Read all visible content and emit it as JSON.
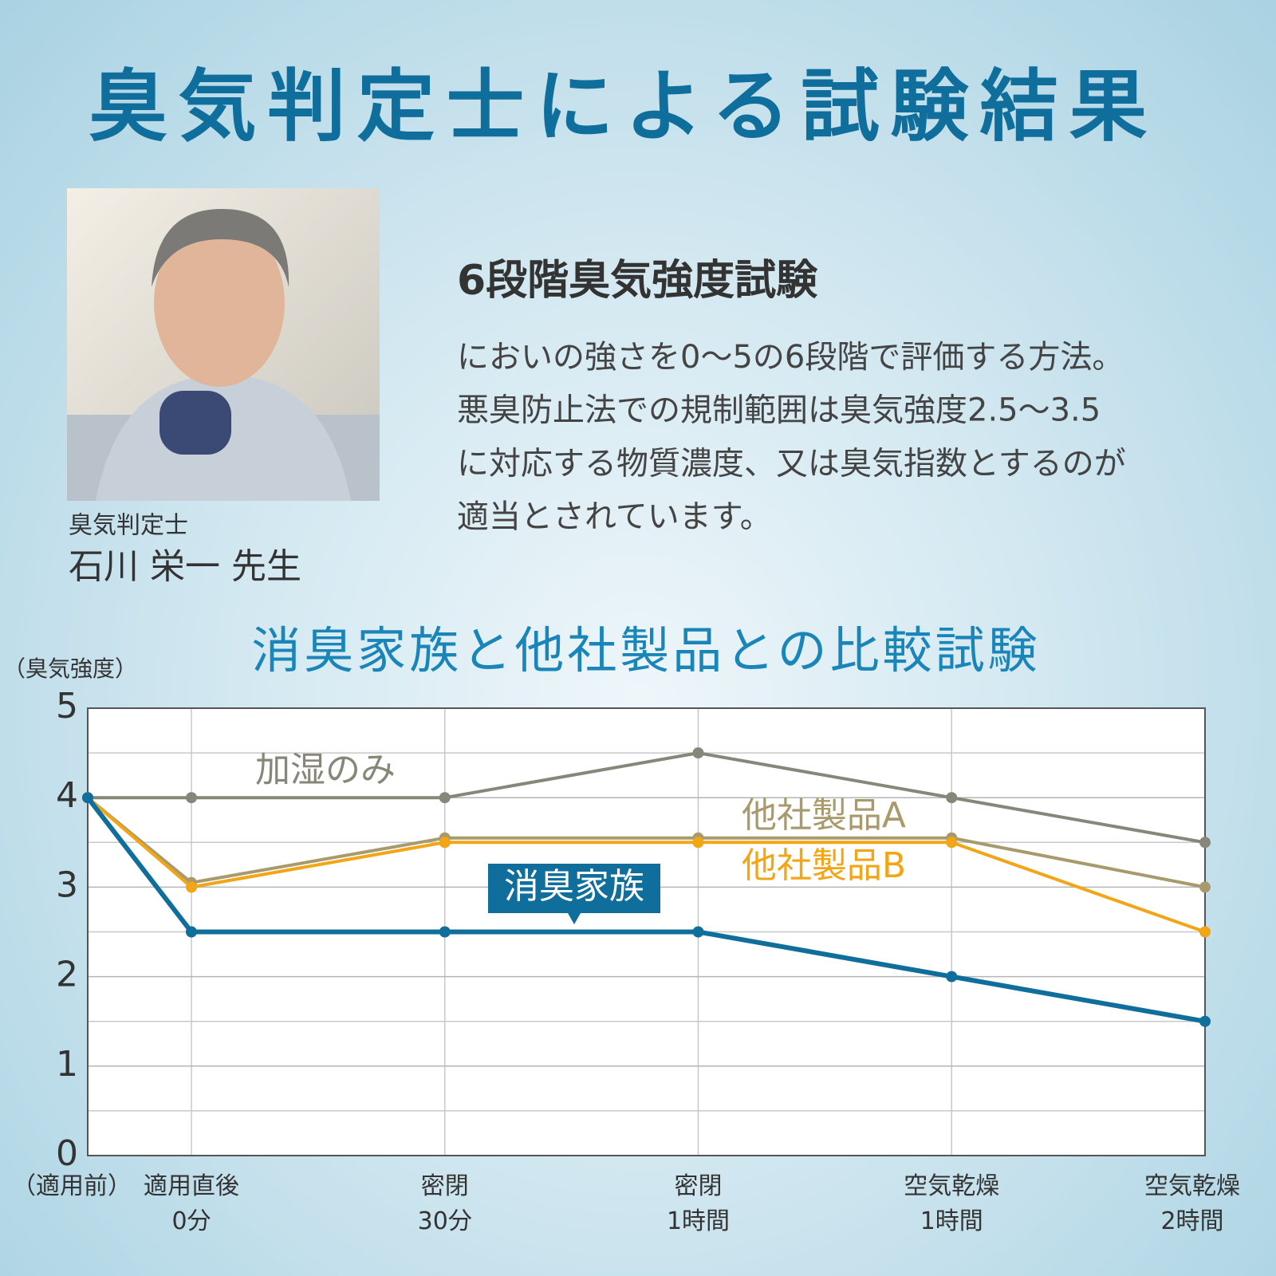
{
  "header": {
    "title": "臭気判定士による試験結果"
  },
  "profile": {
    "role": "臭気判定士",
    "name": "石川 栄一 先生"
  },
  "description": {
    "heading": "6段階臭気強度試験",
    "lines": [
      "においの強さを0〜5の6段階で評価する方法。",
      "悪臭防止法での規制範囲は臭気強度2.5〜3.5",
      "に対応する物質濃度、又は臭気指数とするのが",
      "適当とされています。"
    ]
  },
  "chart_data": {
    "type": "line",
    "title": "消臭家族と他社製品との比較試験",
    "y_label": "（臭気強度）",
    "categories": [
      "（適用前）",
      "適用直後\n0分",
      "密閉\n30分",
      "密閉\n1時間",
      "空気乾燥\n1時間",
      "空気乾燥\n2時間"
    ],
    "series": [
      {
        "name": "加湿のみ",
        "color": "#878779",
        "values": [
          4,
          4,
          4,
          4.5,
          4,
          3.5
        ]
      },
      {
        "name": "他社製品A",
        "color": "#a89a6c",
        "values": [
          4,
          3.05,
          3.55,
          3.55,
          3.55,
          3
        ]
      },
      {
        "name": "他社製品B",
        "color": "#f2a515",
        "values": [
          4,
          3,
          3.5,
          3.5,
          3.5,
          2.5
        ]
      },
      {
        "name": "消臭家族",
        "color": "#0f6e9b",
        "values": [
          4,
          2.5,
          2.5,
          2.5,
          2,
          1.5
        ]
      }
    ],
    "ylim": [
      0,
      5
    ],
    "yticks": [
      0,
      1,
      2,
      3,
      4,
      5
    ],
    "minor_yticks": [
      0.5,
      1.5,
      2.5,
      3.5,
      4.5
    ],
    "grid": true
  }
}
